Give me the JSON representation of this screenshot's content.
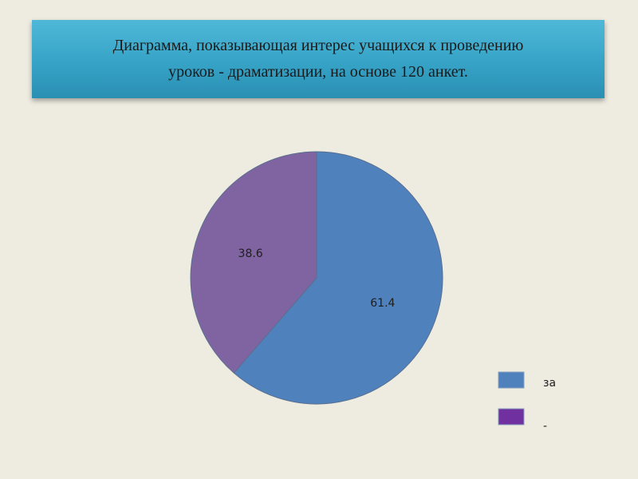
{
  "slide": {
    "background_color": "#eeece1",
    "banner_color": "#36a3c6"
  },
  "chart_data": {
    "type": "pie",
    "title": "Диаграмма, показывающая интерес учащихся  к проведению\nуроков - драматизации, на основе 120 анкет.",
    "slices": [
      {
        "label": "за",
        "value": 61.4,
        "value_label": "61.4",
        "color": "#4f81bd"
      },
      {
        "label": "-",
        "value": 38.6,
        "value_label": "38.6",
        "color": "#8064a2"
      }
    ],
    "legend": {
      "placement": "bottom-right",
      "items": [
        {
          "label": "за",
          "color": "#4f81bd"
        },
        {
          "label": "-",
          "color": "#7030a0"
        }
      ]
    }
  }
}
